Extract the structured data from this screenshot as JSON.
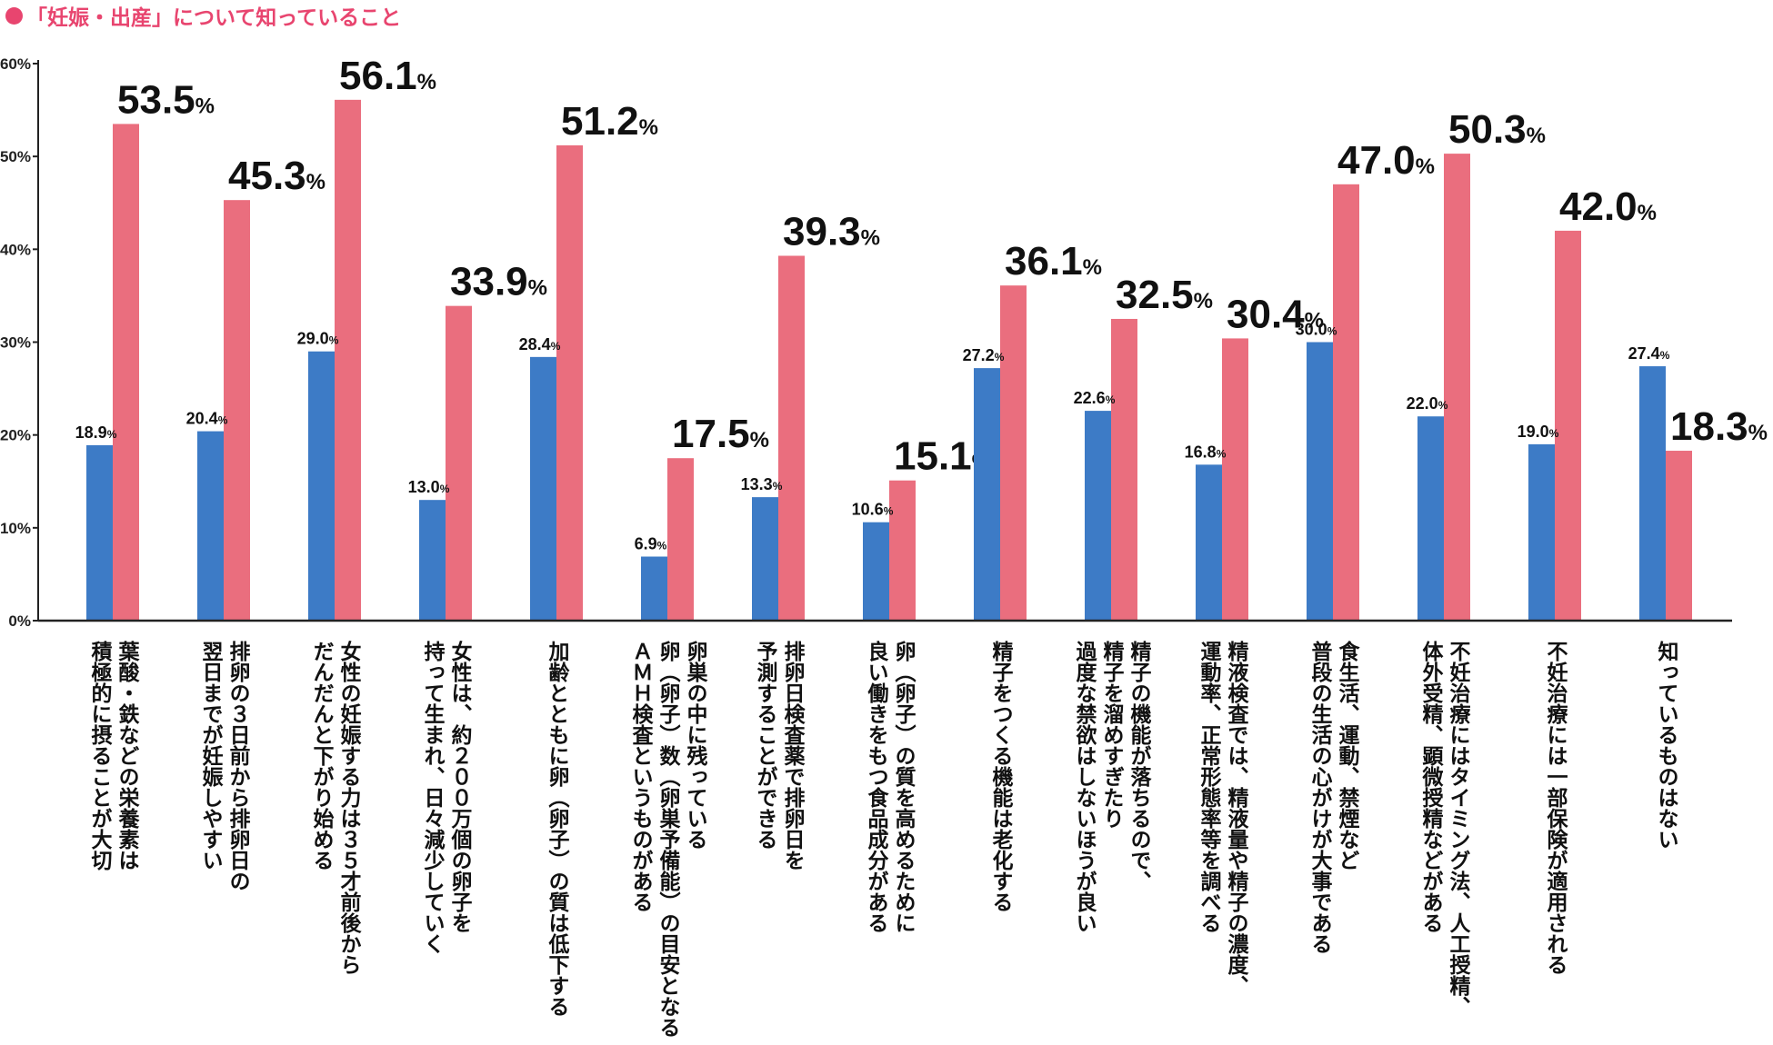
{
  "title": "「妊娠・出産」について知っていること",
  "colors": {
    "title": "#e8456f",
    "blue": "#3d7bc6",
    "pink": "#ea6e7e",
    "axis": "#222222"
  },
  "chart_data": {
    "type": "bar",
    "ylim": [
      0,
      60
    ],
    "yticks": [
      "0%",
      "10%",
      "20%",
      "30%",
      "40%",
      "50%",
      "60%"
    ],
    "categories": [
      [
        "葉酸・鉄などの栄養素は",
        "積極的に摂ることが大切"
      ],
      [
        "排卵の３日前から排卵日の",
        "翌日までが妊娠しやすい"
      ],
      [
        "女性の妊娠する力は３５才前後から",
        "だんだんと下がり始める"
      ],
      [
        "女性は、約２００万個の卵子を",
        "持って生まれ、日々減少していく"
      ],
      [
        "加齢とともに卵（卵子）の質は低下する"
      ],
      [
        "卵巣の中に残っている",
        "卵（卵子）数（卵巣予備能）の目安となる",
        "ＡＭＨ検査というものがある"
      ],
      [
        "排卵日検査薬で排卵日を",
        "予測することができる"
      ],
      [
        "卵（卵子）の質を高めるために",
        "良い働きをもつ食品成分がある"
      ],
      [
        "精子をつくる機能は老化する"
      ],
      [
        "精子の機能が落ちるので、",
        "精子を溜めすぎたり",
        "過度な禁欲はしないほうが良い"
      ],
      [
        "精液検査では、精液量や精子の濃度、",
        "運動率、正常形態率等を調べる"
      ],
      [
        "食生活、運動、禁煙など",
        "普段の生活の心がけが大事である"
      ],
      [
        "不妊治療にはタイミング法、人工授精、",
        "体外受精、顕微授精などがある"
      ],
      [
        "不妊治療には一部保険が適用される"
      ],
      [
        "知っているものはない"
      ]
    ],
    "series": [
      {
        "color": "#3d7bc6",
        "values": [
          18.9,
          20.4,
          29.0,
          13.0,
          28.4,
          6.9,
          13.3,
          10.6,
          27.2,
          22.6,
          16.8,
          30.0,
          22.0,
          19.0,
          27.4
        ],
        "labels": [
          "18.9",
          "20.4",
          "29.0",
          "13.0",
          "28.4",
          "6.9",
          "13.3",
          "10.6",
          "27.2",
          "22.6",
          "16.8",
          "30.0",
          "22.0",
          "19.0",
          "27.4"
        ]
      },
      {
        "color": "#ea6e7e",
        "values": [
          53.5,
          45.3,
          56.1,
          33.9,
          51.2,
          17.5,
          39.3,
          15.1,
          36.1,
          32.5,
          30.4,
          47.0,
          50.3,
          42.0,
          18.3
        ],
        "labels": [
          "53.5",
          "45.3",
          "56.1",
          "33.9",
          "51.2",
          "17.5",
          "39.3",
          "15.1",
          "36.1",
          "32.5",
          "30.4",
          "47.0",
          "50.3",
          "42.0",
          "18.3"
        ]
      }
    ],
    "unit": "%"
  }
}
